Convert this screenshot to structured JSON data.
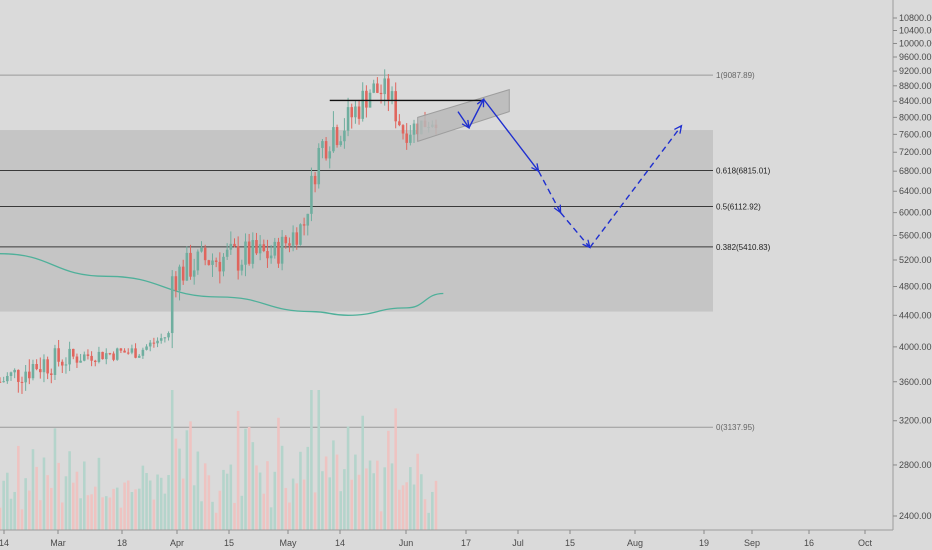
{
  "chart_data": {
    "type": "candlestick",
    "title": "",
    "y_axis": {
      "scale": "log",
      "ylim": [
        2250,
        11300
      ],
      "ticks": [
        "10800.00",
        "10400.00",
        "10000.00",
        "9600.00",
        "9200.00",
        "8800.00",
        "8400.00",
        "8000.00",
        "7600.00",
        "7200.00",
        "6800.00",
        "6400.00",
        "6000.00",
        "5600.00",
        "5200.00",
        "4800.00",
        "4400.00",
        "4000.00",
        "3600.00",
        "3200.00",
        "2800.00",
        "2400.00"
      ]
    },
    "x_axis": {
      "ticks": [
        "14",
        "Mar",
        "18",
        "Apr",
        "15",
        "May",
        "14",
        "Jun",
        "17",
        "Jul",
        "15",
        "Aug",
        "19",
        "Sep",
        "16",
        "Oct"
      ],
      "range": [
        "2019-02-14",
        "2019-10-10"
      ]
    },
    "fibonacci": [
      {
        "label": "1(9087.89)",
        "price": 9087.89,
        "muted": true
      },
      {
        "label": "0.618(6815.01)",
        "price": 6815.01,
        "muted": false
      },
      {
        "label": "0.5(6112.92)",
        "price": 6112.92,
        "muted": false
      },
      {
        "label": "0.382(5410.83)",
        "price": 5410.83,
        "muted": false
      },
      {
        "label": "0(3137.95)",
        "price": 3137.95,
        "muted": true
      }
    ],
    "resistance_line": {
      "price": 8420,
      "from": "2019-05-15",
      "to": "2019-06-26"
    },
    "shaded_zone": {
      "from_price": 7700,
      "to_price": 4450
    },
    "price_series": {
      "dates": [
        "2019-02-14",
        "2019-02-24",
        "2019-03-10",
        "2019-03-24",
        "2019-04-01",
        "2019-04-02",
        "2019-04-10",
        "2019-04-20",
        "2019-04-30",
        "2019-05-08",
        "2019-05-12",
        "2019-05-15",
        "2019-05-20",
        "2019-05-26",
        "2019-05-31",
        "2019-06-04",
        "2019-06-08",
        "2019-06-13"
      ],
      "close": [
        3600,
        3800,
        3900,
        3950,
        4150,
        4950,
        5200,
        5250,
        5300,
        5800,
        7200,
        7700,
        7900,
        8700,
        8600,
        7700,
        7800,
        8000
      ],
      "high": [
        3750,
        4150,
        4000,
        4050,
        4200,
        5400,
        5550,
        5700,
        5650,
        6100,
        7600,
        8300,
        8300,
        9100,
        9000,
        8200,
        8100,
        8250
      ],
      "low": [
        3500,
        3700,
        3800,
        3850,
        4050,
        4800,
        5000,
        5050,
        5100,
        5600,
        6800,
        7100,
        7300,
        8200,
        8100,
        7450,
        7500,
        7650
      ]
    },
    "moving_average": {
      "dates": [
        "2019-02-14",
        "2019-03-15",
        "2019-04-15",
        "2019-05-10",
        "2019-05-20",
        "2019-06-05",
        "2019-06-15"
      ],
      "values": [
        5300,
        4950,
        4650,
        4450,
        4400,
        4500,
        4700
      ]
    },
    "projection": {
      "solid_path": [
        [
          "2019-06-19",
          8140
        ],
        [
          "2019-06-22",
          7750
        ],
        [
          "2019-06-26",
          8450
        ],
        [
          "2019-07-11",
          6800
        ]
      ],
      "dashed_path": [
        [
          "2019-07-11",
          6800
        ],
        [
          "2019-07-17",
          6000
        ],
        [
          "2019-07-25",
          5400
        ],
        [
          "2019-08-19",
          7800
        ]
      ]
    },
    "channel": {
      "upper_start": [
        "2019-06-08",
        8000
      ],
      "upper_end": [
        "2019-07-03",
        8700
      ],
      "width": 560
    },
    "colors": {
      "bull": "#6fae9f",
      "bear": "#e0655d",
      "volume_bull": "#b4d4cb",
      "volume_bear": "#eec3c1",
      "moving_average": "#4fb09a",
      "projection": "#1f2fd0",
      "shaded_zone": "#c5c5c5",
      "background": "#dadada"
    }
  }
}
